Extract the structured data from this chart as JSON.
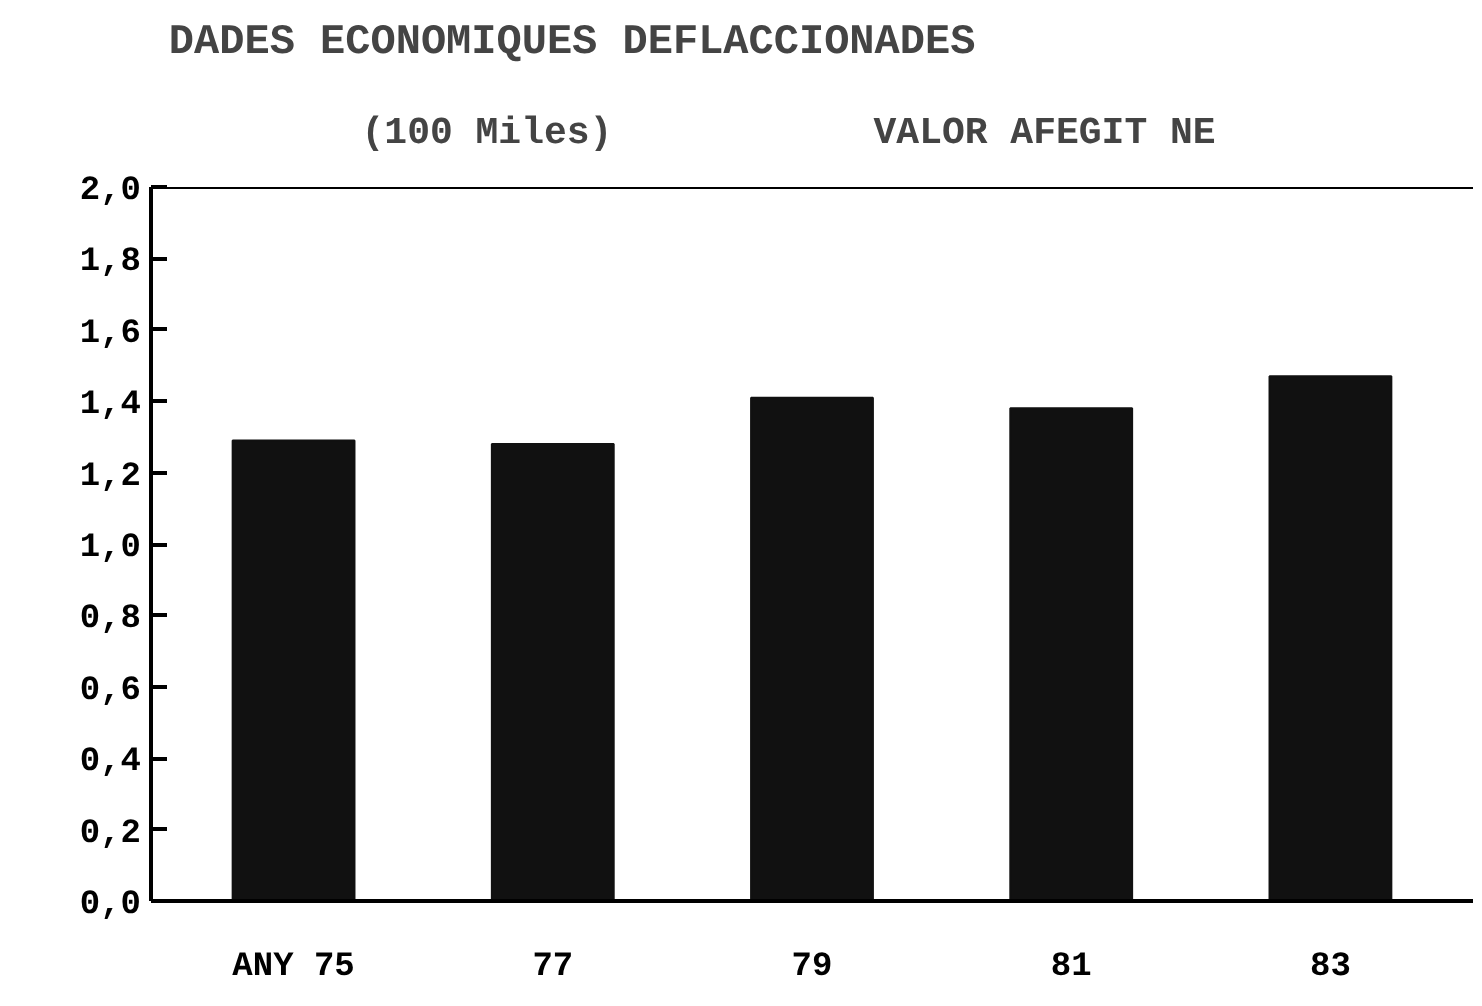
{
  "chart_data": {
    "type": "bar",
    "title": "DADES ECONOMIQUES DEFLACCIONADES",
    "subtitle": "VALOR AFEGIT NE",
    "ylabel": "(100 Miles)",
    "categories": [
      "ANY 75",
      "77",
      "79",
      "81",
      "83"
    ],
    "values": [
      1.29,
      1.28,
      1.41,
      1.38,
      1.47
    ],
    "color": "#111111",
    "ylim": [
      0,
      2
    ],
    "yticks": [
      {
        "value": 0,
        "label": "0,0"
      },
      {
        "value": 0.2,
        "label": "0,2"
      },
      {
        "value": 0.4,
        "label": "0,4"
      },
      {
        "value": 0.6,
        "label": "0,6"
      },
      {
        "value": 0.8,
        "label": "0,8"
      },
      {
        "value": 1,
        "label": "1,0"
      },
      {
        "value": 1.2,
        "label": "1,2"
      },
      {
        "value": 1.4,
        "label": "1,4"
      },
      {
        "value": 1.6,
        "label": "1,6"
      },
      {
        "value": 1.8,
        "label": "1,8"
      },
      {
        "value": 2,
        "label": "2,0"
      }
    ],
    "grid": false
  }
}
